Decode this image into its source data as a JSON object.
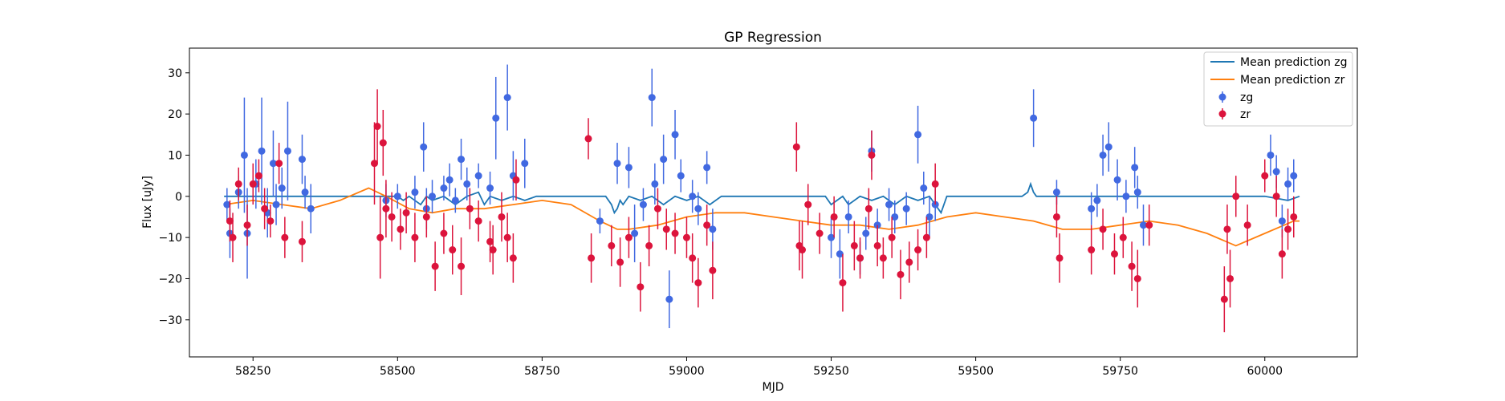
{
  "chart_data": {
    "type": "scatter",
    "title": "GP Regression",
    "xlabel": "MJD",
    "ylabel": "Flux [uJy]",
    "xlim": [
      58140,
      60160
    ],
    "ylim": [
      -39,
      36
    ],
    "xticks": [
      58250,
      58500,
      58750,
      59000,
      59250,
      59500,
      59750,
      60000
    ],
    "yticks": [
      -30,
      -20,
      -10,
      0,
      10,
      20,
      30
    ],
    "grid": false,
    "legend_position": "top-right",
    "legend": [
      {
        "label": "Mean prediction zg",
        "kind": "line",
        "color": "#1f77b4"
      },
      {
        "label": "Mean prediction zr",
        "kind": "line",
        "color": "#ff7f0e"
      },
      {
        "label": "zg",
        "kind": "errorbar",
        "color": "#4169e1"
      },
      {
        "label": "zr",
        "kind": "errorbar",
        "color": "#dc143c"
      }
    ],
    "series": [
      {
        "name": "Mean prediction zg",
        "kind": "line",
        "color": "#1f77b4",
        "x": [
          58200,
          58380,
          58450,
          58500,
          58510,
          58520,
          58540,
          58550,
          58560,
          58580,
          58600,
          58620,
          58640,
          58650,
          58660,
          58680,
          58700,
          58720,
          58740,
          58860,
          58870,
          58875,
          58880,
          58885,
          58890,
          58900,
          58920,
          58940,
          58960,
          58980,
          59000,
          59020,
          59040,
          59060,
          59180,
          59240,
          59250,
          59260,
          59270,
          59280,
          59300,
          59320,
          59340,
          59360,
          59380,
          59400,
          59420,
          59430,
          59440,
          59450,
          59580,
          59590,
          59595,
          59600,
          59605,
          59610,
          59640,
          59700,
          60000,
          60040,
          60060
        ],
        "y": [
          0,
          0,
          0,
          0,
          -1,
          0,
          -2,
          0,
          -1,
          0,
          -2,
          0,
          1,
          -2,
          0,
          -1,
          0,
          -1,
          0,
          0,
          -2,
          -4,
          -3,
          -1,
          -2,
          0,
          -1,
          0,
          -2,
          0,
          -1,
          0,
          -2,
          0,
          0,
          0,
          -2,
          -1,
          0,
          -2,
          0,
          -1,
          0,
          -2,
          0,
          -1,
          0,
          -2,
          -4,
          0,
          0,
          1,
          3,
          1,
          0,
          0,
          0,
          0,
          0,
          -1,
          0
        ]
      },
      {
        "name": "Mean prediction zr",
        "kind": "line",
        "color": "#ff7f0e",
        "x": [
          58200,
          58250,
          58300,
          58350,
          58400,
          58450,
          58480,
          58520,
          58560,
          58600,
          58650,
          58700,
          58750,
          58800,
          58850,
          58880,
          58900,
          58950,
          59000,
          59050,
          59100,
          59150,
          59200,
          59250,
          59300,
          59350,
          59400,
          59450,
          59500,
          59550,
          59600,
          59650,
          59700,
          59750,
          59800,
          59850,
          59900,
          59950,
          60000,
          60050,
          60060
        ],
        "y": [
          -2,
          -1,
          -2,
          -3,
          -1,
          2,
          0,
          -3,
          -4,
          -3,
          -3,
          -2,
          -1,
          -2,
          -6,
          -8,
          -8,
          -7,
          -5,
          -4,
          -4,
          -5,
          -6,
          -7,
          -7,
          -8,
          -7,
          -5,
          -4,
          -5,
          -6,
          -8,
          -8,
          -7,
          -6,
          -7,
          -9,
          -12,
          -9,
          -6,
          -6
        ]
      },
      {
        "name": "zg",
        "kind": "errorbar",
        "color": "#4169e1",
        "points": [
          [
            58205,
            -2,
            4
          ],
          [
            58210,
            -9,
            6
          ],
          [
            58225,
            1,
            4
          ],
          [
            58235,
            10,
            14
          ],
          [
            58240,
            -9,
            11
          ],
          [
            58255,
            3,
            6
          ],
          [
            58265,
            11,
            13
          ],
          [
            58275,
            -4,
            6
          ],
          [
            58285,
            8,
            8
          ],
          [
            58290,
            -2,
            5
          ],
          [
            58300,
            2,
            5
          ],
          [
            58310,
            11,
            12
          ],
          [
            58335,
            9,
            6
          ],
          [
            58340,
            1,
            4
          ],
          [
            58350,
            -3,
            6
          ],
          [
            58480,
            -1,
            4
          ],
          [
            58500,
            0,
            3
          ],
          [
            58530,
            1,
            4
          ],
          [
            58545,
            12,
            6
          ],
          [
            58550,
            -3,
            5
          ],
          [
            58560,
            0,
            4
          ],
          [
            58580,
            2,
            3
          ],
          [
            58590,
            4,
            4
          ],
          [
            58600,
            -1,
            3
          ],
          [
            58610,
            9,
            5
          ],
          [
            58620,
            3,
            4
          ],
          [
            58640,
            5,
            3
          ],
          [
            58660,
            2,
            4
          ],
          [
            58670,
            19,
            10
          ],
          [
            58690,
            24,
            8
          ],
          [
            58700,
            5,
            6
          ],
          [
            58720,
            8,
            6
          ],
          [
            58850,
            -6,
            3
          ],
          [
            58880,
            8,
            5
          ],
          [
            58900,
            7,
            5
          ],
          [
            58910,
            -9,
            7
          ],
          [
            58925,
            -2,
            4
          ],
          [
            58940,
            24,
            7
          ],
          [
            58945,
            3,
            5
          ],
          [
            58960,
            9,
            6
          ],
          [
            58970,
            -25,
            7
          ],
          [
            58980,
            15,
            6
          ],
          [
            58990,
            5,
            4
          ],
          [
            59010,
            0,
            4
          ],
          [
            59020,
            -3,
            4
          ],
          [
            59035,
            7,
            4
          ],
          [
            59045,
            -8,
            5
          ],
          [
            59250,
            -10,
            5
          ],
          [
            59265,
            -14,
            6
          ],
          [
            59280,
            -5,
            4
          ],
          [
            59300,
            -15,
            4
          ],
          [
            59310,
            -9,
            4
          ],
          [
            59320,
            11,
            5
          ],
          [
            59330,
            -7,
            4
          ],
          [
            59350,
            -2,
            4
          ],
          [
            59360,
            -5,
            4
          ],
          [
            59380,
            -3,
            4
          ],
          [
            59400,
            15,
            7
          ],
          [
            59410,
            2,
            4
          ],
          [
            59420,
            -5,
            5
          ],
          [
            59430,
            -2,
            4
          ],
          [
            59600,
            19,
            7
          ],
          [
            59640,
            1,
            3
          ],
          [
            59700,
            -3,
            4
          ],
          [
            59710,
            -1,
            4
          ],
          [
            59720,
            10,
            5
          ],
          [
            59730,
            12,
            6
          ],
          [
            59745,
            4,
            5
          ],
          [
            59760,
            0,
            4
          ],
          [
            59775,
            7,
            5
          ],
          [
            59780,
            1,
            4
          ],
          [
            59790,
            -7,
            5
          ],
          [
            60010,
            10,
            5
          ],
          [
            60020,
            6,
            4
          ],
          [
            60030,
            -6,
            4
          ],
          [
            60040,
            3,
            4
          ],
          [
            60050,
            5,
            4
          ]
        ]
      },
      {
        "name": "zr",
        "kind": "errorbar",
        "color": "#dc143c",
        "points": [
          [
            58210,
            -6,
            5
          ],
          [
            58215,
            -10,
            6
          ],
          [
            58225,
            3,
            4
          ],
          [
            58240,
            -7,
            5
          ],
          [
            58250,
            3,
            5
          ],
          [
            58260,
            5,
            4
          ],
          [
            58270,
            -3,
            5
          ],
          [
            58280,
            -6,
            4
          ],
          [
            58295,
            8,
            5
          ],
          [
            58305,
            -10,
            5
          ],
          [
            58335,
            -11,
            5
          ],
          [
            58460,
            8,
            10
          ],
          [
            58465,
            17,
            9
          ],
          [
            58470,
            -10,
            10
          ],
          [
            58475,
            13,
            8
          ],
          [
            58480,
            -3,
            7
          ],
          [
            58490,
            -5,
            6
          ],
          [
            58505,
            -8,
            5
          ],
          [
            58515,
            -4,
            5
          ],
          [
            58530,
            -10,
            6
          ],
          [
            58550,
            -5,
            5
          ],
          [
            58565,
            -17,
            6
          ],
          [
            58580,
            -9,
            5
          ],
          [
            58595,
            -13,
            6
          ],
          [
            58610,
            -17,
            7
          ],
          [
            58625,
            -3,
            5
          ],
          [
            58640,
            -6,
            5
          ],
          [
            58660,
            -11,
            5
          ],
          [
            58665,
            -13,
            6
          ],
          [
            58680,
            -5,
            6
          ],
          [
            58690,
            -10,
            6
          ],
          [
            58700,
            -15,
            6
          ],
          [
            58705,
            4,
            5
          ],
          [
            58830,
            14,
            5
          ],
          [
            58835,
            -15,
            6
          ],
          [
            58870,
            -12,
            5
          ],
          [
            58885,
            -16,
            6
          ],
          [
            58900,
            -10,
            5
          ],
          [
            58920,
            -22,
            6
          ],
          [
            58935,
            -12,
            5
          ],
          [
            58950,
            -3,
            5
          ],
          [
            58965,
            -8,
            5
          ],
          [
            58980,
            -9,
            5
          ],
          [
            59000,
            -10,
            5
          ],
          [
            59010,
            -15,
            6
          ],
          [
            59020,
            -21,
            6
          ],
          [
            59035,
            -7,
            5
          ],
          [
            59045,
            -18,
            7
          ],
          [
            59190,
            12,
            6
          ],
          [
            59195,
            -12,
            6
          ],
          [
            59200,
            -13,
            7
          ],
          [
            59210,
            -2,
            5
          ],
          [
            59230,
            -9,
            5
          ],
          [
            59255,
            -5,
            5
          ],
          [
            59270,
            -21,
            7
          ],
          [
            59290,
            -12,
            6
          ],
          [
            59300,
            -15,
            5
          ],
          [
            59315,
            -3,
            5
          ],
          [
            59320,
            10,
            6
          ],
          [
            59330,
            -12,
            5
          ],
          [
            59340,
            -15,
            5
          ],
          [
            59355,
            -10,
            5
          ],
          [
            59370,
            -19,
            6
          ],
          [
            59385,
            -16,
            5
          ],
          [
            59400,
            -13,
            5
          ],
          [
            59415,
            -10,
            5
          ],
          [
            59430,
            3,
            5
          ],
          [
            59640,
            -5,
            5
          ],
          [
            59645,
            -15,
            6
          ],
          [
            59700,
            -13,
            6
          ],
          [
            59720,
            -8,
            5
          ],
          [
            59740,
            -14,
            5
          ],
          [
            59755,
            -10,
            5
          ],
          [
            59770,
            -17,
            6
          ],
          [
            59780,
            -20,
            7
          ],
          [
            59800,
            -7,
            5
          ],
          [
            59930,
            -25,
            8
          ],
          [
            59935,
            -8,
            6
          ],
          [
            59940,
            -20,
            7
          ],
          [
            59950,
            0,
            5
          ],
          [
            59970,
            -7,
            5
          ],
          [
            60000,
            5,
            4
          ],
          [
            60020,
            0,
            5
          ],
          [
            60030,
            -14,
            6
          ],
          [
            60040,
            -8,
            5
          ],
          [
            60050,
            -5,
            5
          ]
        ]
      }
    ]
  }
}
